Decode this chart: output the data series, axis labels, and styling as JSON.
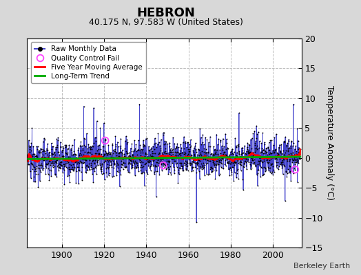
{
  "title": "HEBRON",
  "subtitle": "40.175 N, 97.583 W (United States)",
  "ylabel": "Temperature Anomaly (°C)",
  "credit": "Berkeley Earth",
  "year_start": 1884,
  "year_end": 2013,
  "ylim": [
    -15,
    20
  ],
  "yticks": [
    -15,
    -10,
    -5,
    0,
    5,
    10,
    15,
    20
  ],
  "xticks": [
    1900,
    1920,
    1940,
    1960,
    1980,
    2000
  ],
  "bg_color": "#d8d8d8",
  "plot_bg_color": "#ffffff",
  "grid_color": "#bbbbbb",
  "raw_line_color": "#4444cc",
  "raw_dot_color": "#000000",
  "moving_avg_color": "#ff0000",
  "trend_color": "#00aa00",
  "qc_fail_color": "#ff44ff",
  "seed": 12345,
  "moving_avg_window": 60,
  "title_fontsize": 13,
  "subtitle_fontsize": 9,
  "tick_fontsize": 9,
  "ylabel_fontsize": 9
}
